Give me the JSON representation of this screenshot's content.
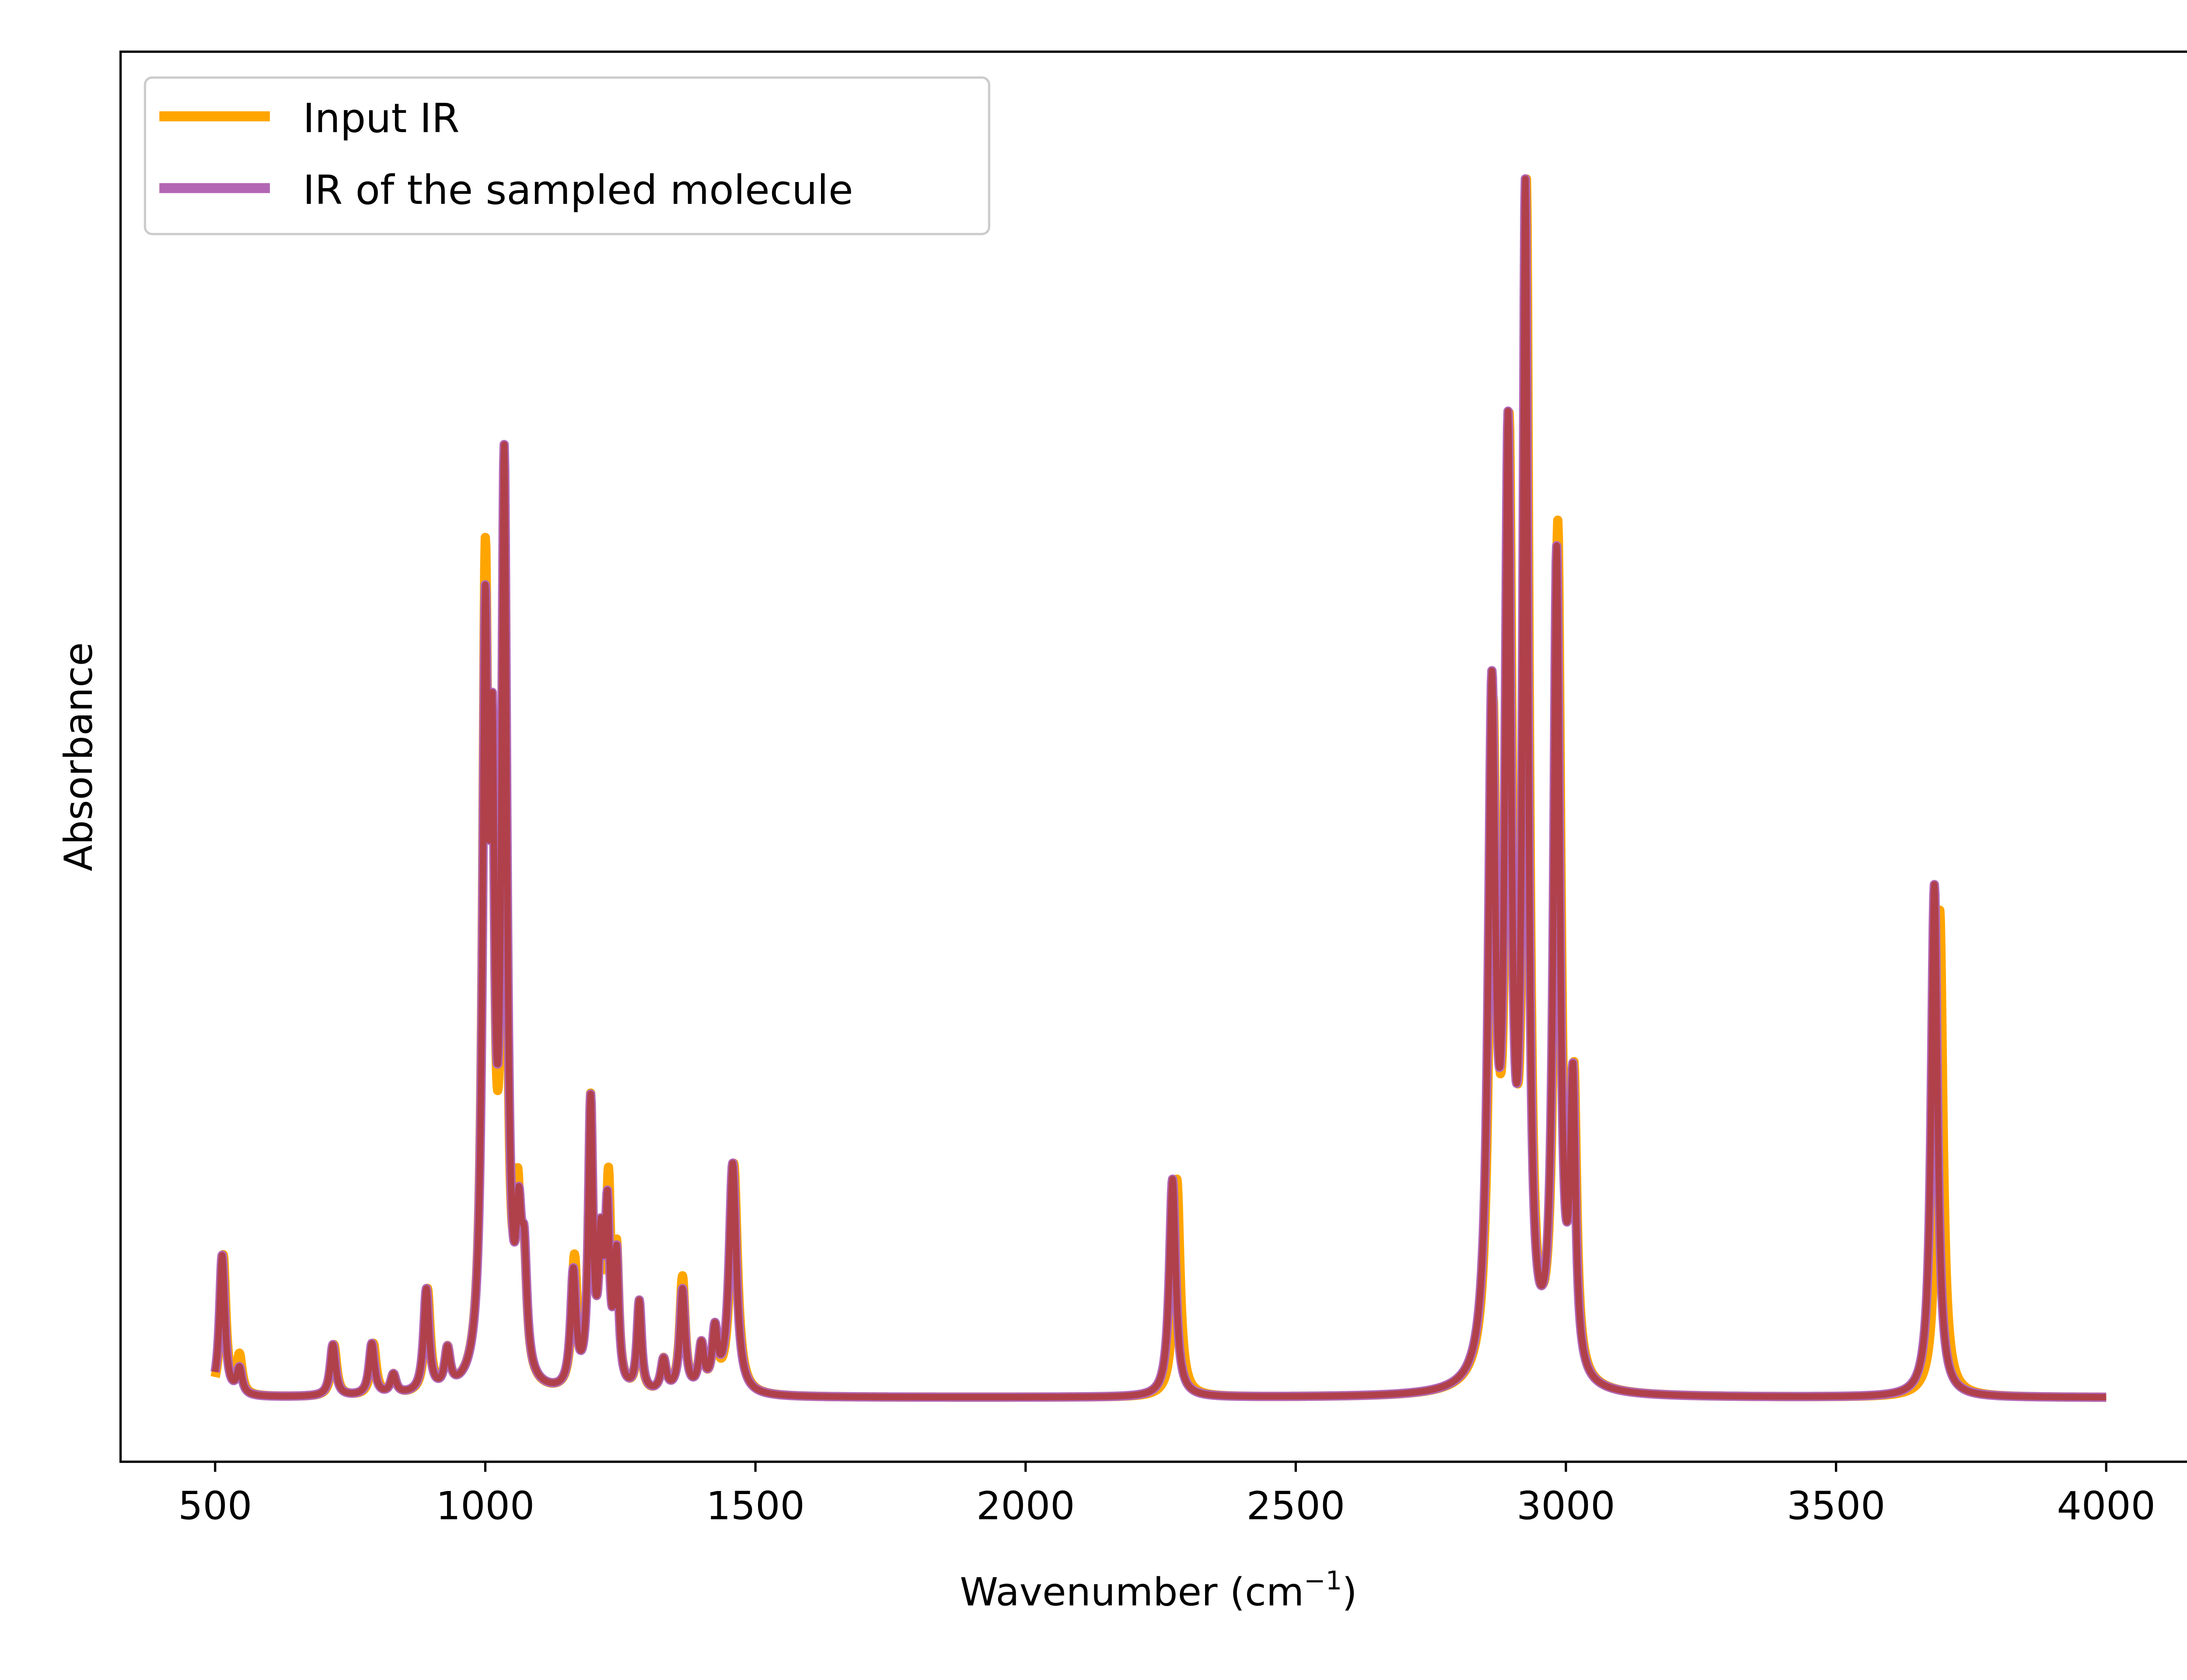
{
  "chart_data": {
    "type": "line",
    "title": "",
    "xlabel": "Wavenumber (cm",
    "xlabel_sup": "−1",
    "xlabel_end": ")",
    "ylabel": "Absorbance",
    "xlim": [
      325,
      4167
    ],
    "ylim": [
      -0.05,
      1.05
    ],
    "xticks": [
      500,
      1000,
      1500,
      2000,
      2500,
      3000,
      3500,
      4000
    ],
    "xtick_labels": [
      "500",
      "1000",
      "1500",
      "2000",
      "2500",
      "3000",
      "3500",
      "4000"
    ],
    "x_range": [
      500,
      4000
    ],
    "grid": false,
    "legend_position": "top-left",
    "peak_model": "lorentzian, [center cm-1, height, half-width cm-1]",
    "series": [
      {
        "name": "Input IR",
        "color": "#ffa500",
        "peaks": [
          [
            515,
            0.11,
            6
          ],
          [
            545,
            0.03,
            6
          ],
          [
            720,
            0.04,
            6
          ],
          [
            793,
            0.04,
            6
          ],
          [
            830,
            0.015,
            6
          ],
          [
            893,
            0.08,
            6
          ],
          [
            930,
            0.03,
            6
          ],
          [
            1000,
            0.6,
            6
          ],
          [
            1013,
            0.4,
            5
          ],
          [
            1035,
            0.58,
            6
          ],
          [
            1060,
            0.12,
            6
          ],
          [
            1072,
            0.08,
            6
          ],
          [
            1165,
            0.1,
            6
          ],
          [
            1195,
            0.22,
            5
          ],
          [
            1214,
            0.1,
            5
          ],
          [
            1228,
            0.15,
            5
          ],
          [
            1243,
            0.1,
            5
          ],
          [
            1285,
            0.06,
            5
          ],
          [
            1330,
            0.025,
            6
          ],
          [
            1365,
            0.09,
            6
          ],
          [
            1400,
            0.035,
            6
          ],
          [
            1425,
            0.045,
            6
          ],
          [
            1460,
            0.18,
            8
          ],
          [
            2280,
            0.17,
            7
          ],
          [
            2865,
            0.5,
            8
          ],
          [
            2895,
            0.7,
            7
          ],
          [
            2927,
            0.9,
            6
          ],
          [
            2985,
            0.66,
            7
          ],
          [
            3015,
            0.22,
            6
          ],
          [
            3692,
            0.38,
            7
          ]
        ]
      },
      {
        "name": "IR of the sampled molecule",
        "color": "#b266b4",
        "overlap_color": "#b0414b",
        "peaks": [
          [
            513,
            0.11,
            6
          ],
          [
            545,
            0.02,
            6
          ],
          [
            718,
            0.04,
            6
          ],
          [
            790,
            0.04,
            6
          ],
          [
            830,
            0.015,
            6
          ],
          [
            891,
            0.08,
            6
          ],
          [
            930,
            0.03,
            6
          ],
          [
            1000,
            0.56,
            6
          ],
          [
            1013,
            0.4,
            5
          ],
          [
            1035,
            0.7,
            6
          ],
          [
            1062,
            0.1,
            6
          ],
          [
            1072,
            0.08,
            6
          ],
          [
            1163,
            0.09,
            6
          ],
          [
            1195,
            0.22,
            5
          ],
          [
            1214,
            0.1,
            5
          ],
          [
            1226,
            0.13,
            5
          ],
          [
            1243,
            0.1,
            5
          ],
          [
            1285,
            0.07,
            5
          ],
          [
            1330,
            0.025,
            6
          ],
          [
            1365,
            0.08,
            6
          ],
          [
            1400,
            0.035,
            6
          ],
          [
            1425,
            0.045,
            6
          ],
          [
            1458,
            0.18,
            8
          ],
          [
            2272,
            0.17,
            7
          ],
          [
            2863,
            0.52,
            8
          ],
          [
            2893,
            0.7,
            7
          ],
          [
            2925,
            0.9,
            6
          ],
          [
            2983,
            0.64,
            7
          ],
          [
            3013,
            0.22,
            6
          ],
          [
            3682,
            0.4,
            7
          ]
        ]
      }
    ]
  }
}
